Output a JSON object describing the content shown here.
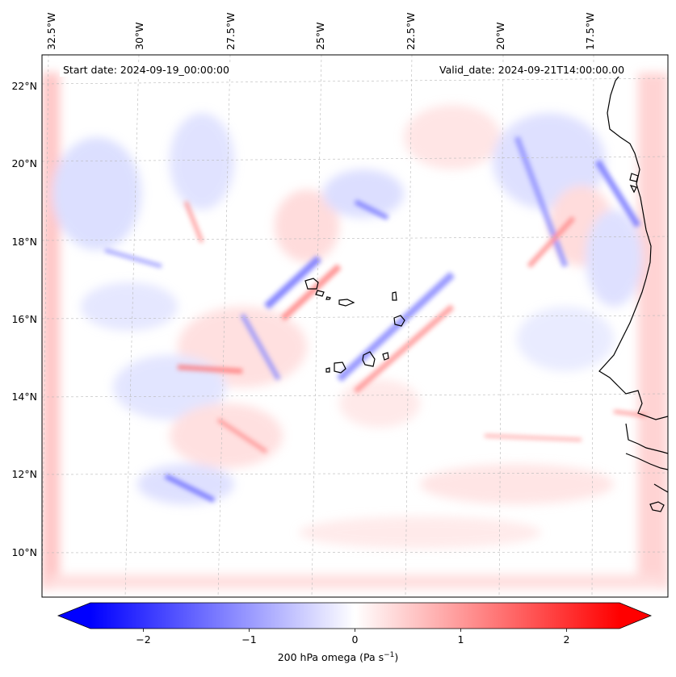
{
  "map": {
    "start_date": "Start date: 2024-09-19_00:00:00",
    "valid_date": "Valid_date: 2024-09-21T14:00:00.00",
    "lon_labels": [
      "32.5°W",
      "30°W",
      "27.5°W",
      "25°W",
      "22.5°W",
      "20°W",
      "17.5°W"
    ],
    "lat_labels": [
      "22°N",
      "20°N",
      "18°N",
      "16°N",
      "14°N",
      "12°N",
      "10°N"
    ],
    "colorbar": {
      "label_text": "200 hPa omega (Pa s",
      "label_unit_exp": "−1",
      "label_close": ")",
      "tick_labels": [
        "−2",
        "−1",
        "0",
        "1",
        "2"
      ],
      "tick_values": [
        -2,
        -1,
        0,
        1,
        2
      ],
      "range": [
        -2.5,
        2.5
      ],
      "negative_color": "#0000ff",
      "zero_color": "#ffffff",
      "positive_color": "#ff0000"
    }
  }
}
